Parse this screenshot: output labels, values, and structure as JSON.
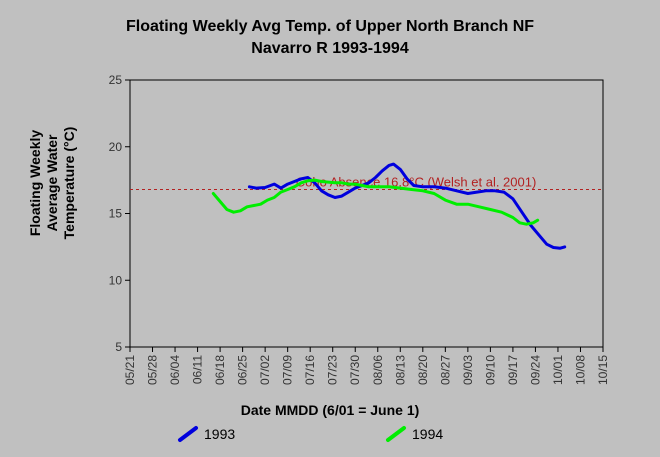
{
  "chart_data": {
    "type": "line",
    "title_line1": "Floating Weekly Avg Temp. of Upper North Branch NF",
    "title_line2": "Navarro R 1993-1994",
    "ylabel_line1": "Floating Weekly",
    "ylabel_line2": "Average Water",
    "ylabel_line3": "Temperature (°C)",
    "xlabel": "Date MMDD (6/01 = June 1)",
    "ylim": [
      5,
      25
    ],
    "yticks": [
      "5",
      "10",
      "15",
      "20",
      "25"
    ],
    "xticks": [
      "05/21",
      "05/28",
      "06/04",
      "06/11",
      "06/18",
      "06/25",
      "07/02",
      "07/09",
      "07/16",
      "07/23",
      "07/30",
      "08/06",
      "08/13",
      "08/20",
      "08/27",
      "09/03",
      "09/10",
      "09/17",
      "09/24",
      "10/01",
      "10/08",
      "10/15"
    ],
    "grid": false,
    "legend_position": "bottom",
    "reference_line": {
      "value": 16.8,
      "label": "Coho Absence 16.8°C (Welsh et al. 2001)",
      "color": "#b22222"
    },
    "series": [
      {
        "name": "1993",
        "color": "#0000dd",
        "points": [
          [
            5.3,
            17.0
          ],
          [
            5.6,
            16.9
          ],
          [
            6.0,
            16.95
          ],
          [
            6.4,
            17.2
          ],
          [
            6.7,
            16.9
          ],
          [
            7.0,
            17.2
          ],
          [
            7.3,
            17.4
          ],
          [
            7.6,
            17.6
          ],
          [
            7.9,
            17.7
          ],
          [
            8.2,
            17.3
          ],
          [
            8.5,
            16.7
          ],
          [
            8.8,
            16.4
          ],
          [
            9.1,
            16.2
          ],
          [
            9.4,
            16.3
          ],
          [
            9.7,
            16.6
          ],
          [
            10.0,
            16.9
          ],
          [
            10.3,
            17.1
          ],
          [
            10.6,
            17.3
          ],
          [
            10.9,
            17.7
          ],
          [
            11.2,
            18.2
          ],
          [
            11.5,
            18.6
          ],
          [
            11.7,
            18.7
          ],
          [
            12.0,
            18.3
          ],
          [
            12.3,
            17.6
          ],
          [
            12.6,
            17.1
          ],
          [
            13.0,
            17.0
          ],
          [
            13.5,
            17.0
          ],
          [
            14.0,
            16.9
          ],
          [
            14.5,
            16.7
          ],
          [
            15.0,
            16.5
          ],
          [
            15.4,
            16.6
          ],
          [
            15.8,
            16.7
          ],
          [
            16.2,
            16.7
          ],
          [
            16.6,
            16.6
          ],
          [
            17.0,
            16.1
          ],
          [
            17.4,
            15.1
          ],
          [
            17.8,
            14.1
          ],
          [
            18.2,
            13.3
          ],
          [
            18.5,
            12.7
          ],
          [
            18.8,
            12.45
          ],
          [
            19.1,
            12.4
          ],
          [
            19.3,
            12.5
          ]
        ]
      },
      {
        "name": "1994",
        "color": "#00ee00",
        "points": [
          [
            3.7,
            16.5
          ],
          [
            4.0,
            15.9
          ],
          [
            4.3,
            15.3
          ],
          [
            4.6,
            15.1
          ],
          [
            4.9,
            15.2
          ],
          [
            5.2,
            15.5
          ],
          [
            5.5,
            15.6
          ],
          [
            5.8,
            15.7
          ],
          [
            6.1,
            16.0
          ],
          [
            6.4,
            16.2
          ],
          [
            6.7,
            16.6
          ],
          [
            7.0,
            16.8
          ],
          [
            7.3,
            17.0
          ],
          [
            7.6,
            17.3
          ],
          [
            7.9,
            17.45
          ],
          [
            8.2,
            17.5
          ],
          [
            8.5,
            17.4
          ],
          [
            8.8,
            17.35
          ],
          [
            9.1,
            17.3
          ],
          [
            9.4,
            17.3
          ],
          [
            9.7,
            17.2
          ],
          [
            10.0,
            17.2
          ],
          [
            10.3,
            17.1
          ],
          [
            10.6,
            17.0
          ],
          [
            10.9,
            17.0
          ],
          [
            11.2,
            17.0
          ],
          [
            11.5,
            17.0
          ],
          [
            12.0,
            16.9
          ],
          [
            12.5,
            16.8
          ],
          [
            13.0,
            16.7
          ],
          [
            13.5,
            16.5
          ],
          [
            14.0,
            16.0
          ],
          [
            14.5,
            15.7
          ],
          [
            15.0,
            15.7
          ],
          [
            15.5,
            15.5
          ],
          [
            16.0,
            15.3
          ],
          [
            16.5,
            15.1
          ],
          [
            17.0,
            14.7
          ],
          [
            17.3,
            14.3
          ],
          [
            17.6,
            14.2
          ],
          [
            17.9,
            14.3
          ],
          [
            18.1,
            14.5
          ]
        ]
      }
    ]
  }
}
